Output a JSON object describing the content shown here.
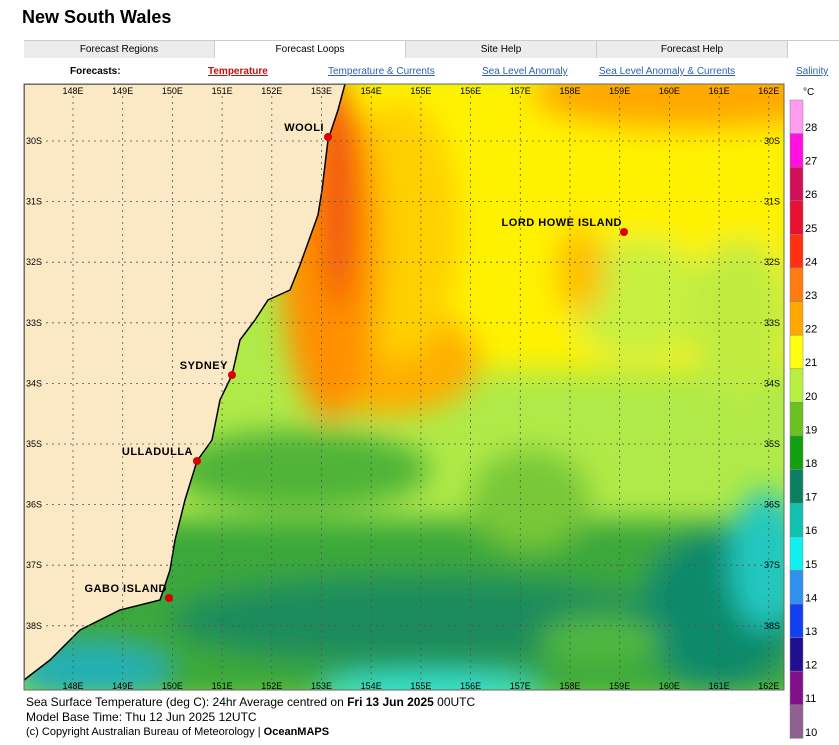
{
  "header": {
    "title": "New South Wales"
  },
  "tabs": [
    "Forecast Regions",
    "Forecast Loops",
    "Site Help",
    "Forecast Help"
  ],
  "active_tab": 1,
  "forecasts": {
    "label": "Forecasts:",
    "links": [
      "Temperature",
      "Temperature & Currents",
      "Sea Level Anomaly",
      "Sea Level Anomaly & Currents",
      "Salinity"
    ],
    "active_link": 0
  },
  "map": {
    "lon_labels": [
      "148E",
      "149E",
      "150E",
      "151E",
      "152E",
      "153E",
      "154E",
      "155E",
      "156E",
      "157E",
      "158E",
      "159E",
      "160E",
      "161E",
      "162E"
    ],
    "lat_labels": [
      "30S",
      "31S",
      "32S",
      "33S",
      "34S",
      "35S",
      "36S",
      "37S",
      "38S"
    ],
    "places": [
      "WOOLI",
      "LORD HOWE ISLAND",
      "SYDNEY",
      "ULLADULLA",
      "GABO ISLAND"
    ],
    "colorbar": {
      "unit": "°C",
      "levels": [
        28,
        27,
        26,
        25,
        24,
        23,
        22,
        21,
        20,
        19,
        18,
        17,
        16,
        15,
        14,
        13,
        12,
        11,
        10
      ],
      "colors": [
        "#ff9cf0",
        "#ff10e0",
        "#d0105a",
        "#e81030",
        "#ff3010",
        "#ff7a10",
        "#ffa800",
        "#ffff10",
        "#b8f040",
        "#6cc020",
        "#10a010",
        "#0a8060",
        "#10c0b0",
        "#10f0f0",
        "#3090f0",
        "#1040f0",
        "#201090",
        "#801088",
        "#906090"
      ]
    }
  },
  "caption": {
    "line1": "Sea Surface Temperature (deg C): 24hr Average centred on",
    "line1_date": "Fri 13 Jun 2025",
    "line1_time": "00UTC",
    "line2": "Model Base Time: Thu 12 Jun 2025 12UTC",
    "line3": "(c) Copyright Australian Bureau of Meteorology |",
    "line3_brand": "OceanMAPS"
  }
}
